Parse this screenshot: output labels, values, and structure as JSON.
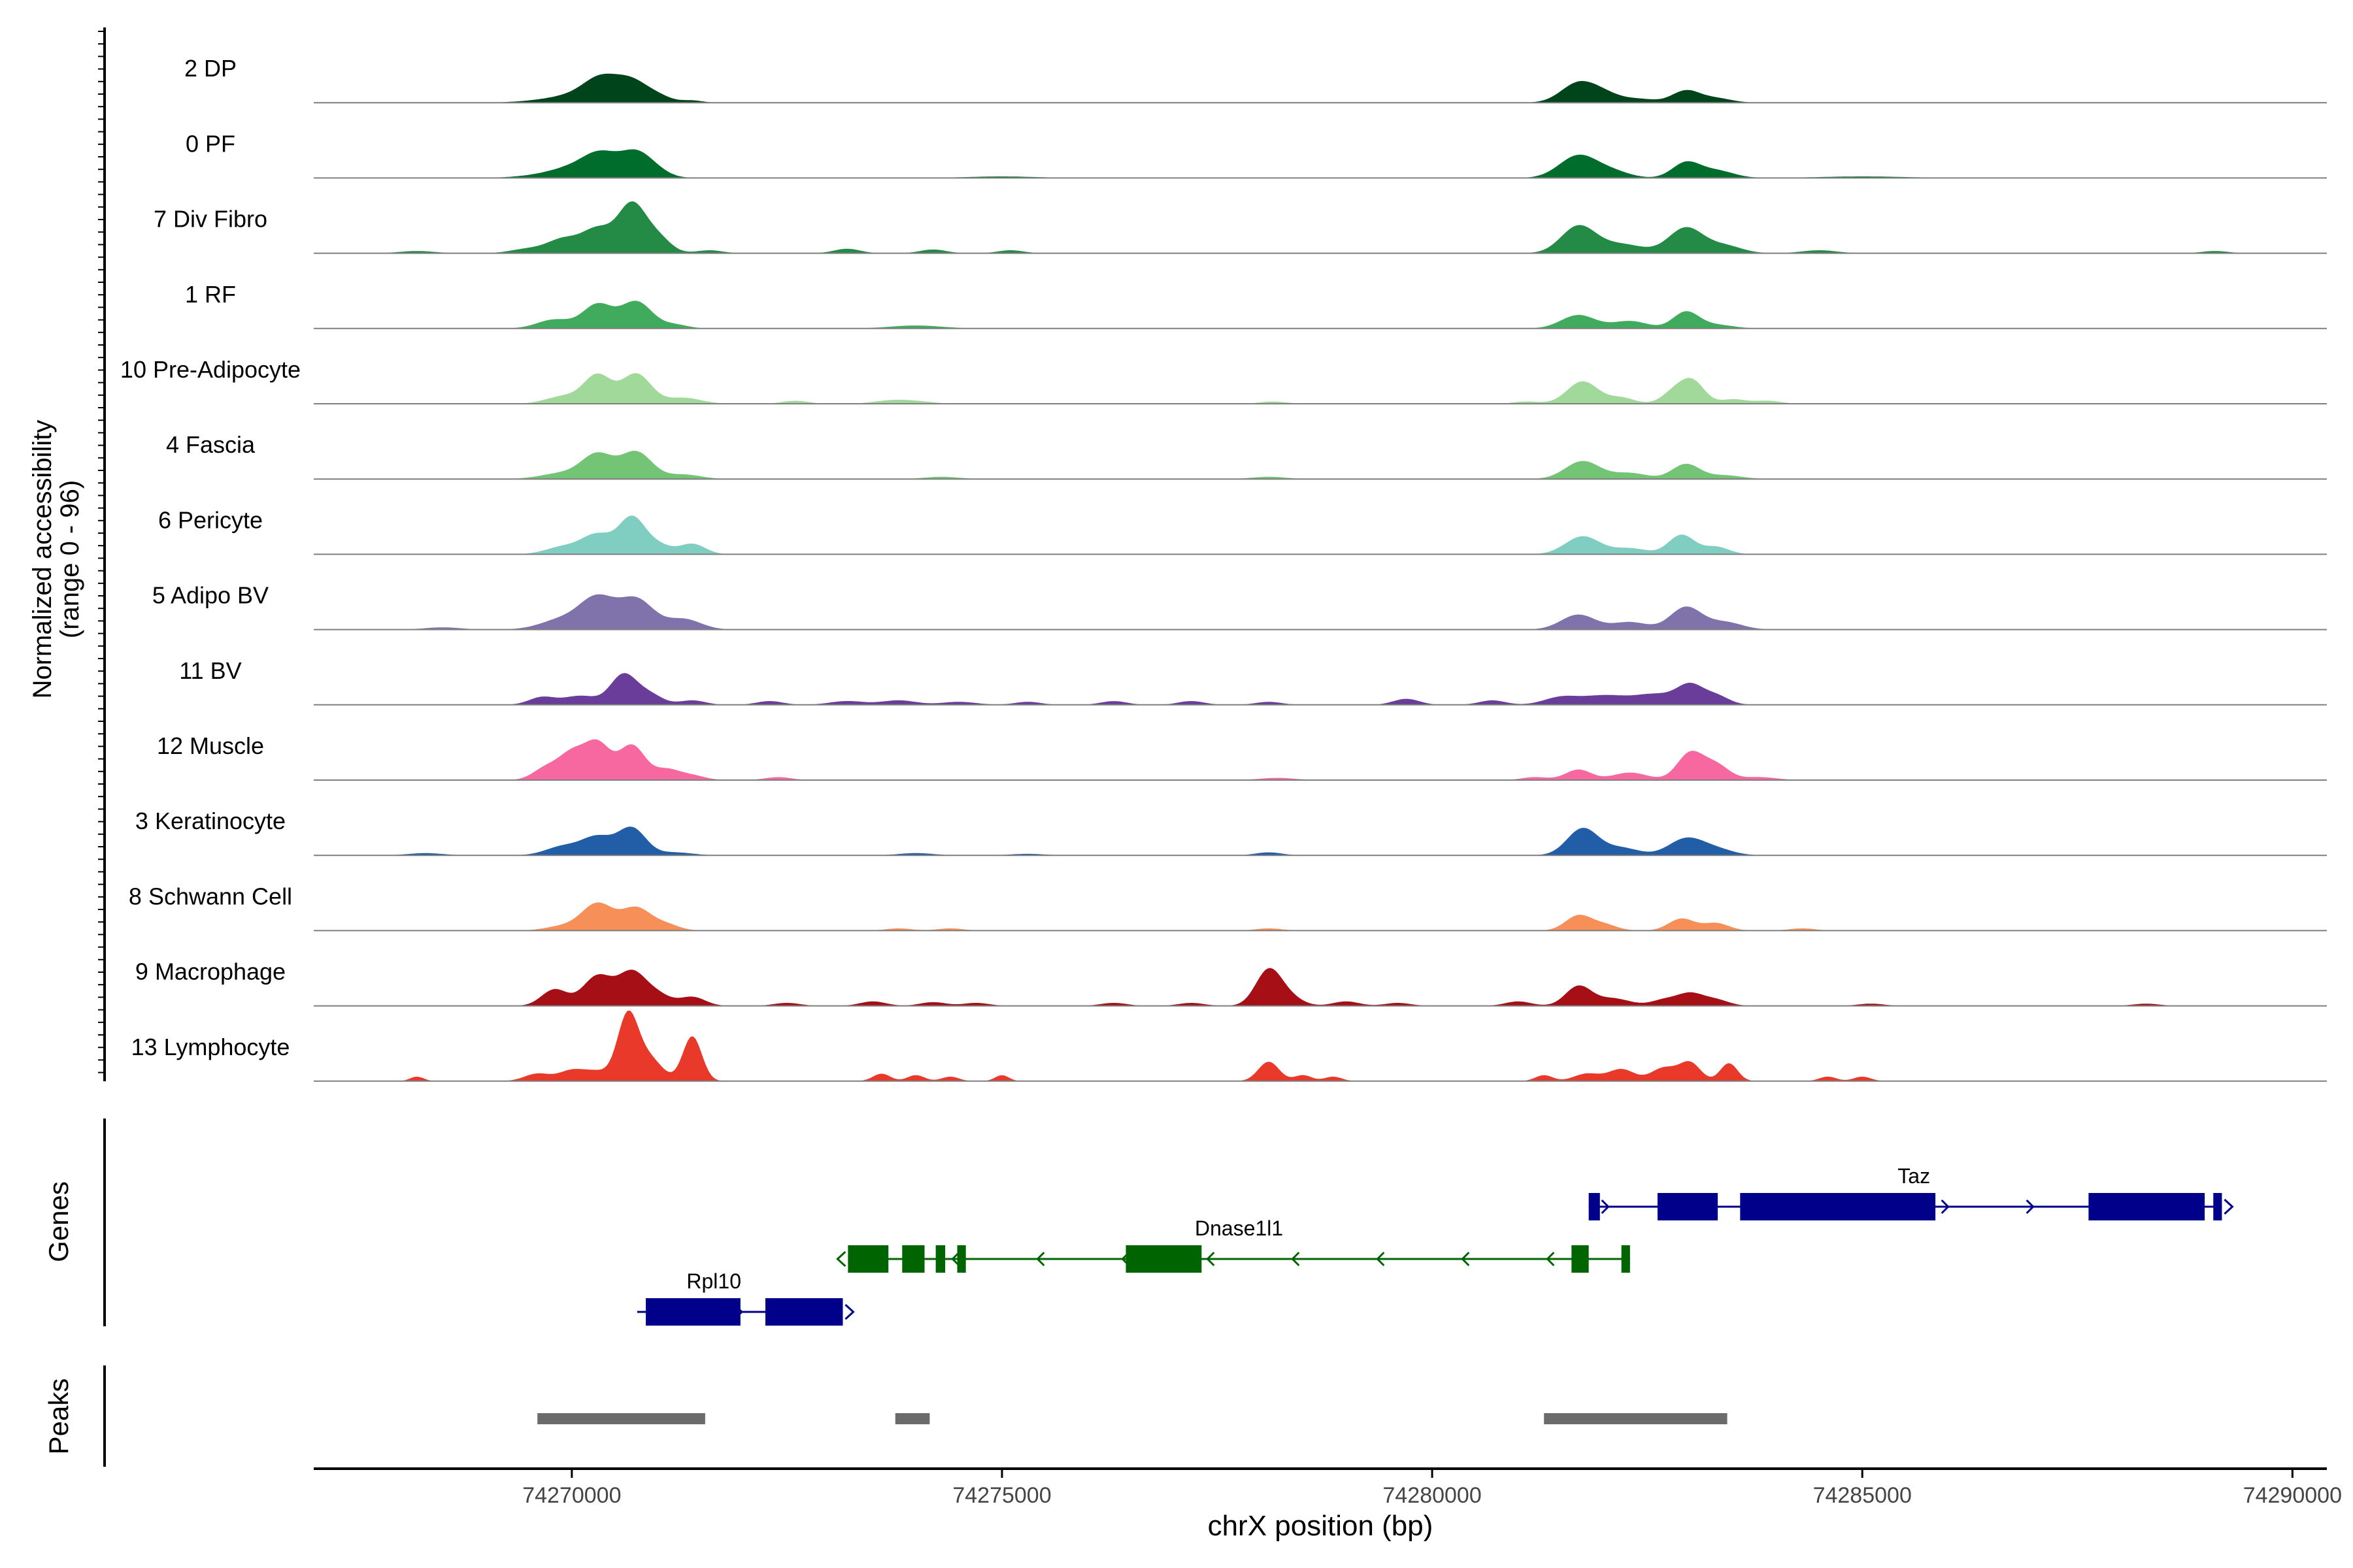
{
  "chart_data": {
    "type": "area",
    "title": "",
    "xlabel": "chrX position (bp)",
    "ylabel": "Normalized accessibility",
    "ylabel_range": "(range 0 - 96)",
    "xlim": [
      74267000,
      74290400
    ],
    "ylim": [
      0,
      96
    ],
    "x_ticks": [
      74270000,
      74275000,
      74280000,
      74285000,
      74290000
    ],
    "x_tick_labels": [
      "74270000",
      "74275000",
      "74280000",
      "74285000",
      "74290000"
    ],
    "series": [
      {
        "name": "2 DP",
        "color": "#00441b",
        "peaks": [
          [
            74269700,
            3,
            300
          ],
          [
            74270050,
            8,
            250
          ],
          [
            74270350,
            30,
            200
          ],
          [
            74270700,
            26,
            180
          ],
          [
            74271000,
            8,
            160
          ],
          [
            74271400,
            3,
            120
          ],
          [
            74281700,
            26,
            200
          ],
          [
            74282000,
            10,
            180
          ],
          [
            74282400,
            5,
            200
          ],
          [
            74282950,
            16,
            160
          ],
          [
            74283300,
            6,
            180
          ]
        ]
      },
      {
        "name": "0 PF",
        "color": "#006d2c",
        "peaks": [
          [
            74269700,
            4,
            300
          ],
          [
            74270050,
            12,
            250
          ],
          [
            74270350,
            28,
            200
          ],
          [
            74270750,
            32,
            180
          ],
          [
            74271000,
            6,
            160
          ],
          [
            74281700,
            30,
            220
          ],
          [
            74282100,
            8,
            200
          ],
          [
            74282950,
            20,
            160
          ],
          [
            74283300,
            10,
            200
          ],
          [
            74275000,
            2,
            400
          ],
          [
            74285000,
            2,
            500
          ]
        ]
      },
      {
        "name": "7 Div Fibro",
        "color": "#238b45",
        "peaks": [
          [
            74268200,
            3,
            200
          ],
          [
            74269500,
            6,
            200
          ],
          [
            74269900,
            18,
            180
          ],
          [
            74270300,
            32,
            180
          ],
          [
            74270700,
            64,
            160
          ],
          [
            74271000,
            20,
            150
          ],
          [
            74271600,
            4,
            150
          ],
          [
            74273200,
            6,
            150
          ],
          [
            74274200,
            5,
            150
          ],
          [
            74275100,
            4,
            150
          ],
          [
            74281700,
            36,
            200
          ],
          [
            74282200,
            12,
            250
          ],
          [
            74282950,
            34,
            200
          ],
          [
            74283400,
            10,
            200
          ],
          [
            74284500,
            4,
            200
          ],
          [
            74289100,
            3,
            150
          ]
        ]
      },
      {
        "name": "1 RF",
        "color": "#41ab5d",
        "peaks": [
          [
            74269800,
            12,
            200
          ],
          [
            74270300,
            32,
            170
          ],
          [
            74270750,
            36,
            180
          ],
          [
            74271200,
            5,
            150
          ],
          [
            74274000,
            4,
            300
          ],
          [
            74281700,
            18,
            200
          ],
          [
            74282300,
            10,
            200
          ],
          [
            74282950,
            22,
            150
          ],
          [
            74283300,
            5,
            200
          ]
        ]
      },
      {
        "name": "10 Pre-Adipocyte",
        "color": "#a1d99b",
        "peaks": [
          [
            74269900,
            10,
            200
          ],
          [
            74270300,
            38,
            160
          ],
          [
            74270750,
            40,
            170
          ],
          [
            74271300,
            8,
            200
          ],
          [
            74272600,
            4,
            150
          ],
          [
            74273700,
            4,
            200
          ],
          [
            74274000,
            3,
            200
          ],
          [
            74278150,
            3,
            150
          ],
          [
            74281100,
            3,
            150
          ],
          [
            74281750,
            30,
            180
          ],
          [
            74282200,
            8,
            150
          ],
          [
            74282850,
            20,
            150
          ],
          [
            74283050,
            24,
            130
          ],
          [
            74283500,
            6,
            150
          ],
          [
            74283900,
            4,
            150
          ]
        ]
      },
      {
        "name": "4 Fascia",
        "color": "#74c476",
        "peaks": [
          [
            74269900,
            8,
            250
          ],
          [
            74270300,
            32,
            180
          ],
          [
            74270750,
            36,
            180
          ],
          [
            74271300,
            6,
            200
          ],
          [
            74274300,
            3,
            200
          ],
          [
            74278100,
            3,
            200
          ],
          [
            74281750,
            24,
            200
          ],
          [
            74282300,
            8,
            200
          ],
          [
            74282950,
            20,
            160
          ],
          [
            74283400,
            5,
            200
          ]
        ]
      },
      {
        "name": "6 Pericyte",
        "color": "#80cdc1",
        "peaks": [
          [
            74269900,
            10,
            200
          ],
          [
            74270300,
            26,
            180
          ],
          [
            74270700,
            48,
            150
          ],
          [
            74271000,
            12,
            150
          ],
          [
            74271400,
            14,
            150
          ],
          [
            74281750,
            24,
            200
          ],
          [
            74282300,
            8,
            200
          ],
          [
            74282900,
            26,
            150
          ],
          [
            74283300,
            10,
            150
          ]
        ]
      },
      {
        "name": "5 Adipo BV",
        "color": "#8073ac",
        "peaks": [
          [
            74268500,
            3,
            200
          ],
          [
            74269900,
            14,
            250
          ],
          [
            74270300,
            40,
            200
          ],
          [
            74270750,
            40,
            200
          ],
          [
            74271300,
            14,
            200
          ],
          [
            74281700,
            20,
            200
          ],
          [
            74282300,
            10,
            200
          ],
          [
            74282950,
            30,
            180
          ],
          [
            74283400,
            10,
            200
          ]
        ]
      },
      {
        "name": "11 BV",
        "color": "#6a3d9a",
        "peaks": [
          [
            74269650,
            10,
            150
          ],
          [
            74270100,
            12,
            200
          ],
          [
            74270600,
            40,
            150
          ],
          [
            74270900,
            14,
            150
          ],
          [
            74271400,
            6,
            150
          ],
          [
            74272300,
            5,
            150
          ],
          [
            74273200,
            5,
            200
          ],
          [
            74273800,
            6,
            200
          ],
          [
            74274500,
            4,
            200
          ],
          [
            74275300,
            4,
            150
          ],
          [
            74276300,
            5,
            150
          ],
          [
            74277200,
            5,
            150
          ],
          [
            74278100,
            4,
            150
          ],
          [
            74279700,
            8,
            150
          ],
          [
            74280700,
            6,
            150
          ],
          [
            74281500,
            10,
            200
          ],
          [
            74282000,
            12,
            250
          ],
          [
            74282600,
            14,
            250
          ],
          [
            74283000,
            24,
            150
          ],
          [
            74283300,
            12,
            150
          ]
        ]
      },
      {
        "name": "12 Muscle",
        "color": "#f768a1",
        "peaks": [
          [
            74269700,
            16,
            150
          ],
          [
            74270000,
            34,
            150
          ],
          [
            74270300,
            48,
            150
          ],
          [
            74270700,
            46,
            150
          ],
          [
            74271100,
            14,
            150
          ],
          [
            74271400,
            6,
            150
          ],
          [
            74272400,
            4,
            150
          ],
          [
            74278200,
            3,
            200
          ],
          [
            74281200,
            4,
            150
          ],
          [
            74281700,
            14,
            150
          ],
          [
            74282300,
            10,
            200
          ],
          [
            74283000,
            36,
            150
          ],
          [
            74283300,
            20,
            150
          ],
          [
            74283800,
            4,
            200
          ]
        ]
      },
      {
        "name": "3 Keratinocyte",
        "color": "#225ea8",
        "peaks": [
          [
            74268300,
            3,
            200
          ],
          [
            74269900,
            12,
            200
          ],
          [
            74270300,
            24,
            180
          ],
          [
            74270700,
            36,
            160
          ],
          [
            74271200,
            4,
            200
          ],
          [
            74274000,
            3,
            200
          ],
          [
            74275300,
            2,
            200
          ],
          [
            74278100,
            4,
            150
          ],
          [
            74281750,
            36,
            180
          ],
          [
            74282200,
            10,
            200
          ],
          [
            74282950,
            22,
            200
          ],
          [
            74283300,
            8,
            200
          ]
        ]
      },
      {
        "name": "8 Schwann Cell",
        "color": "#f78f59",
        "peaks": [
          [
            74269900,
            6,
            200
          ],
          [
            74270300,
            36,
            180
          ],
          [
            74270750,
            30,
            170
          ],
          [
            74271100,
            8,
            150
          ],
          [
            74273800,
            3,
            150
          ],
          [
            74274400,
            3,
            150
          ],
          [
            74278100,
            3,
            150
          ],
          [
            74281700,
            20,
            150
          ],
          [
            74282000,
            8,
            150
          ],
          [
            74282900,
            16,
            150
          ],
          [
            74283300,
            10,
            150
          ],
          [
            74284300,
            3,
            150
          ]
        ]
      },
      {
        "name": "9 Macrophage",
        "color": "#a50f15",
        "peaks": [
          [
            74269800,
            22,
            150
          ],
          [
            74270300,
            40,
            170
          ],
          [
            74270700,
            44,
            160
          ],
          [
            74271000,
            14,
            150
          ],
          [
            74271400,
            12,
            150
          ],
          [
            74272500,
            4,
            150
          ],
          [
            74273500,
            6,
            150
          ],
          [
            74274200,
            5,
            150
          ],
          [
            74274700,
            4,
            150
          ],
          [
            74276300,
            4,
            150
          ],
          [
            74277200,
            4,
            150
          ],
          [
            74278100,
            48,
            150
          ],
          [
            74278350,
            10,
            150
          ],
          [
            74279000,
            6,
            150
          ],
          [
            74279600,
            4,
            150
          ],
          [
            74281000,
            6,
            150
          ],
          [
            74281700,
            26,
            150
          ],
          [
            74282100,
            10,
            200
          ],
          [
            74282700,
            8,
            150
          ],
          [
            74283000,
            16,
            150
          ],
          [
            74283300,
            8,
            150
          ],
          [
            74285100,
            3,
            150
          ],
          [
            74288300,
            3,
            150
          ]
        ]
      },
      {
        "name": "13 Lymphocyte",
        "color": "#e8392a",
        "peaks": [
          [
            74268200,
            6,
            80
          ],
          [
            74269600,
            10,
            150
          ],
          [
            74270000,
            14,
            150
          ],
          [
            74270300,
            12,
            150
          ],
          [
            74270650,
            86,
            120
          ],
          [
            74270900,
            30,
            150
          ],
          [
            74271400,
            60,
            110
          ],
          [
            74273600,
            10,
            100
          ],
          [
            74274000,
            8,
            100
          ],
          [
            74274400,
            6,
            100
          ],
          [
            74275000,
            8,
            80
          ],
          [
            74278100,
            26,
            120
          ],
          [
            74278500,
            8,
            100
          ],
          [
            74278850,
            6,
            100
          ],
          [
            74281300,
            8,
            100
          ],
          [
            74281800,
            10,
            150
          ],
          [
            74282200,
            16,
            150
          ],
          [
            74282700,
            18,
            150
          ],
          [
            74283000,
            24,
            120
          ],
          [
            74283450,
            24,
            100
          ],
          [
            74284600,
            6,
            100
          ],
          [
            74285000,
            6,
            100
          ]
        ]
      }
    ],
    "genes": [
      {
        "name": "Taz",
        "strand": "+",
        "color": "#00008b",
        "start": 74281820,
        "end": 74289180,
        "exons": [
          [
            74281820,
            74281950
          ],
          [
            74282620,
            74283320
          ],
          [
            74283580,
            74285850
          ],
          [
            74287630,
            74288980
          ],
          [
            74289080,
            74289180
          ]
        ]
      },
      {
        "name": "Dnase1l1",
        "strand": "-",
        "color": "#006400",
        "start": 74273210,
        "end": 74282300,
        "exons": [
          [
            74273210,
            74273680
          ],
          [
            74273840,
            74274100
          ],
          [
            74274230,
            74274340
          ],
          [
            74274480,
            74274580
          ],
          [
            74276440,
            74277320
          ],
          [
            74281620,
            74281820
          ],
          [
            74282200,
            74282300
          ]
        ]
      },
      {
        "name": "Rpl10",
        "strand": "+",
        "color": "#00008b",
        "start": 74270760,
        "end": 74273150,
        "exons": [
          [
            74270860,
            74271960
          ],
          [
            74272250,
            74273150
          ]
        ]
      }
    ],
    "peaks_track": [
      [
        74269600,
        74271550
      ],
      [
        74273760,
        74274160
      ],
      [
        74281300,
        74283430
      ]
    ],
    "panel_labels": {
      "genes": "Genes",
      "peaks": "Peaks"
    }
  }
}
